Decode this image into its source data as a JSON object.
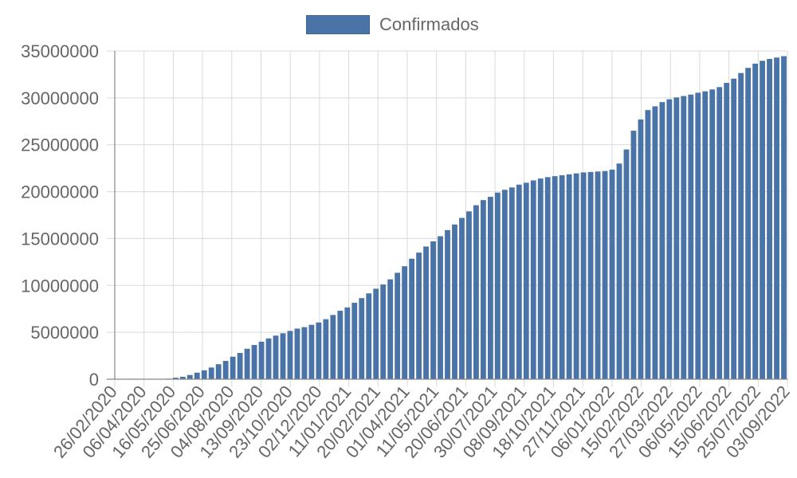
{
  "chart_data": {
    "type": "bar",
    "legend": {
      "label": "Confirmados",
      "position": "top"
    },
    "colors": {
      "bar": "#4a74a7",
      "bar_border": "#3c6596",
      "grid": "#d9d9d9",
      "axis": "#888888",
      "text": "#666666"
    },
    "grid": true,
    "ylim": [
      0,
      35000000
    ],
    "yticks": [
      0,
      5000000,
      10000000,
      15000000,
      20000000,
      25000000,
      30000000,
      35000000
    ],
    "ytick_labels": [
      "0",
      "5000000",
      "10000000",
      "15000000",
      "20000000",
      "25000000",
      "30000000",
      "35000000"
    ],
    "xtick_labels": [
      "26/02/2020",
      "06/04/2020",
      "16/05/2020",
      "25/06/2020",
      "04/08/2020",
      "13/09/2020",
      "23/10/2020",
      "02/12/2020",
      "11/01/2021",
      "20/02/2021",
      "01/04/2021",
      "11/05/2021",
      "20/06/2021",
      "30/07/2021",
      "08/09/2021",
      "18/10/2021",
      "27/11/2021",
      "06/01/2022",
      "15/02/2022",
      "27/03/2022",
      "06/05/2022",
      "15/06/2022",
      "25/07/2022",
      "03/09/2022"
    ],
    "values": [
      0,
      0,
      0,
      0,
      0,
      0,
      10000,
      60000,
      160000,
      260000,
      450000,
      700000,
      950000,
      1250000,
      1600000,
      1950000,
      2400000,
      2800000,
      3250000,
      3650000,
      4000000,
      4350000,
      4650000,
      4900000,
      5150000,
      5400000,
      5550000,
      5800000,
      6050000,
      6400000,
      6850000,
      7300000,
      7650000,
      8150000,
      8650000,
      9150000,
      9650000,
      10100000,
      10650000,
      11350000,
      12050000,
      12850000,
      13500000,
      14150000,
      14700000,
      15250000,
      15900000,
      16500000,
      17200000,
      17900000,
      18550000,
      19100000,
      19450000,
      19900000,
      20200000,
      20450000,
      20750000,
      20950000,
      21200000,
      21400000,
      21550000,
      21650000,
      21750000,
      21850000,
      21950000,
      22050000,
      22100000,
      22150000,
      22200000,
      22350000,
      23000000,
      24500000,
      26500000,
      27700000,
      28700000,
      29100000,
      29550000,
      29850000,
      30050000,
      30200000,
      30350000,
      30550000,
      30700000,
      30900000,
      31150000,
      31600000,
      32050000,
      32650000,
      33200000,
      33650000,
      33950000,
      34150000,
      34300000,
      34450000
    ]
  }
}
